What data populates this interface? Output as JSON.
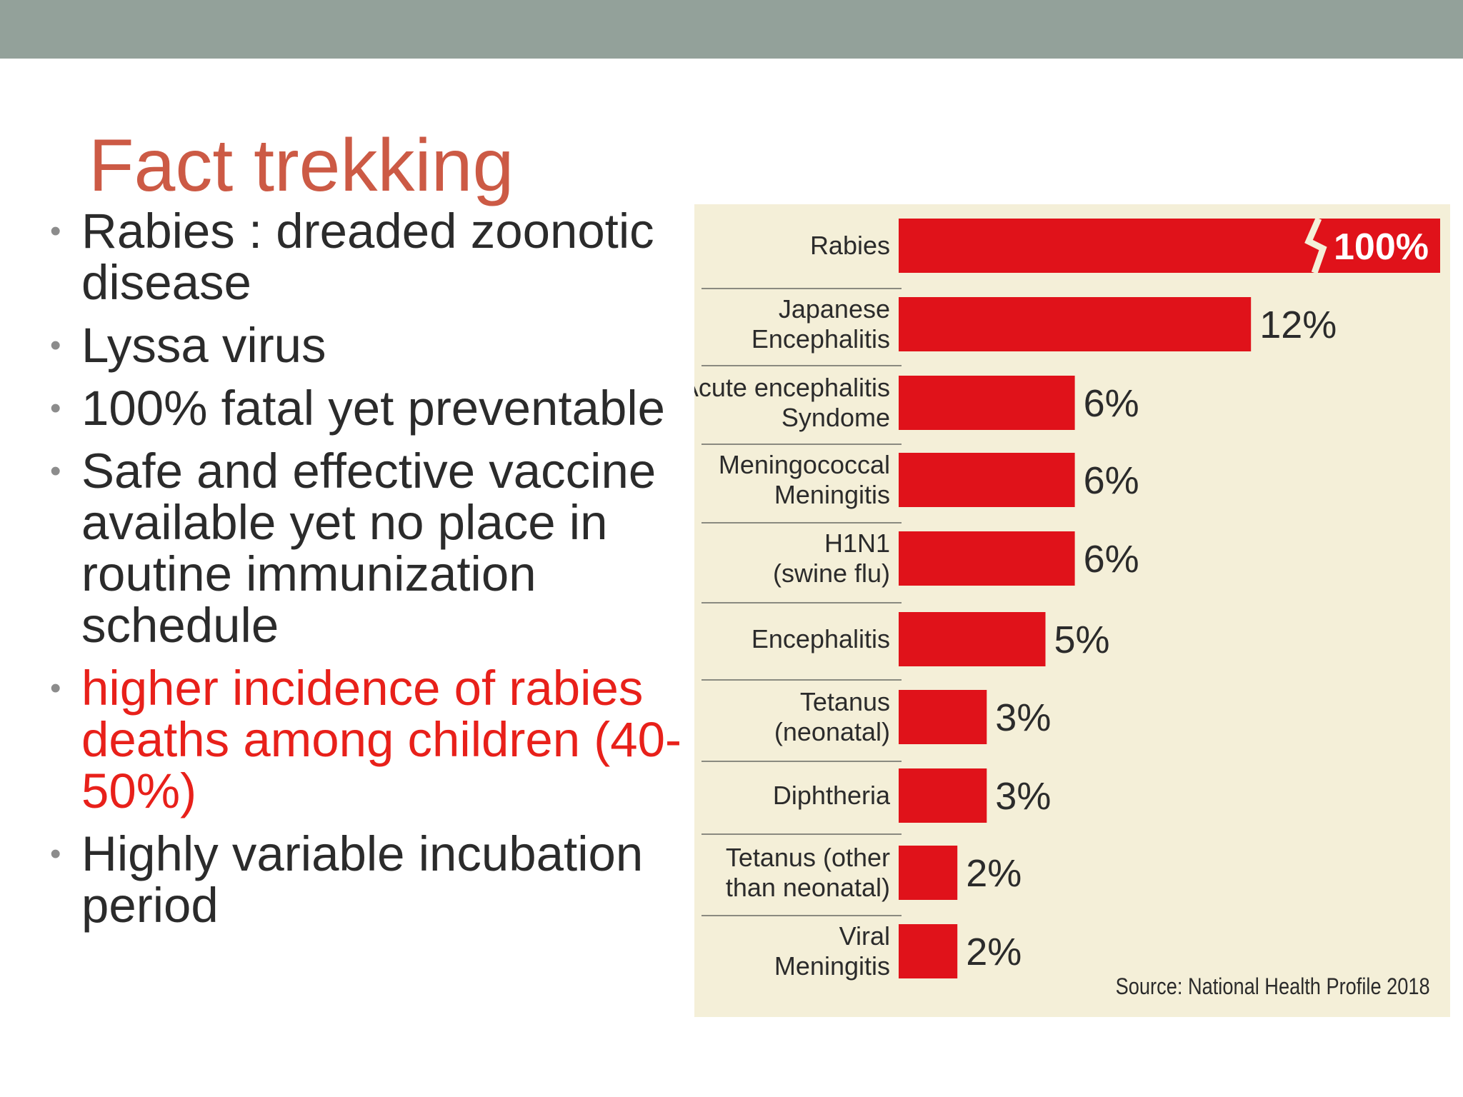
{
  "slide": {
    "title": "Fact trekking",
    "bullets": [
      {
        "text": "Rabies : dreaded zoonotic disease",
        "highlight": false
      },
      {
        "text": "Lyssa virus",
        "highlight": false
      },
      {
        "text": "100% fatal yet preventable",
        "highlight": false
      },
      {
        "text": "Safe and effective vaccine available yet no place in routine immunization schedule",
        "highlight": false
      },
      {
        "text": " higher incidence of rabies deaths among children (40-50%)",
        "highlight": true
      },
      {
        "text": "Highly variable incubation period",
        "highlight": false
      }
    ],
    "colors": {
      "accent_title": "#cc5a45",
      "highlight_text": "#e8201a",
      "top_bar": "#93a19a",
      "bar": "#e0121a",
      "chart_bg": "#f4efd8"
    }
  },
  "chart_data": {
    "type": "bar",
    "orientation": "horizontal",
    "categories": [
      [
        "Rabies"
      ],
      [
        "Japanese",
        "Encephalitis"
      ],
      [
        "Acute encephalitis",
        "Syndome"
      ],
      [
        "Meningococcal",
        "Meningitis"
      ],
      [
        "H1N1",
        "(swine flu)"
      ],
      [
        "Encephalitis"
      ],
      [
        "Tetanus",
        "(neonatal)"
      ],
      [
        "Diphtheria"
      ],
      [
        "Tetanus (other",
        "than neonatal)"
      ],
      [
        "Viral",
        "Meningitis"
      ]
    ],
    "values": [
      100,
      12,
      6,
      6,
      6,
      5,
      3,
      3,
      2,
      2
    ],
    "value_labels": [
      "100%",
      "12%",
      "6%",
      "6%",
      "6%",
      "5%",
      "3%",
      "3%",
      "2%",
      "2%"
    ],
    "axis_break": {
      "category_index": 0
    },
    "source": "Source: National Health Profile 2018",
    "title": "",
    "xlabel": "",
    "ylabel": ""
  }
}
